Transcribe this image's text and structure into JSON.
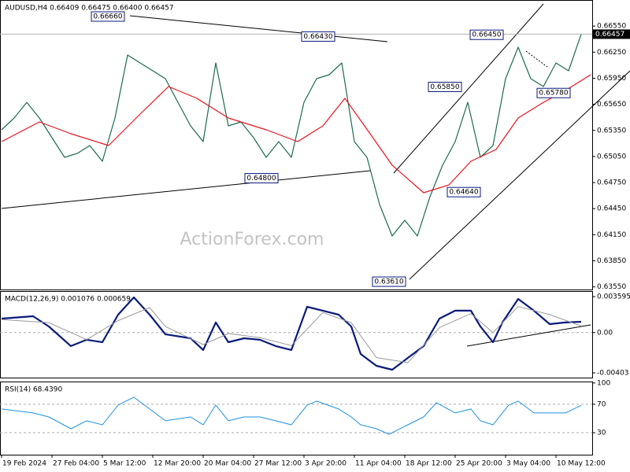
{
  "chart_data": [
    {
      "type": "line",
      "title": "AUDUSD,H4  0.66409 0.66475 0.66400 0.66457",
      "watermark": "ActionForex.com",
      "xlim": [
        -0.5,
        187.5
      ],
      "ylim": [
        0.6352,
        0.6685
      ],
      "yticks": [
        {
          "value": 0.6655,
          "label": "0.66550"
        },
        {
          "value": 0.6625,
          "label": "0.66250"
        },
        {
          "value": 0.6595,
          "label": "0.65950"
        },
        {
          "value": 0.6565,
          "label": "0.65650"
        },
        {
          "value": 0.6535,
          "label": "0.65350"
        },
        {
          "value": 0.6505,
          "label": "0.65050"
        },
        {
          "value": 0.6475,
          "label": "0.64750"
        },
        {
          "value": 0.6445,
          "label": "0.64450"
        },
        {
          "value": 0.6415,
          "label": "0.64150"
        },
        {
          "value": 0.6385,
          "label": "0.63850"
        },
        {
          "value": 0.6355,
          "label": "0.63550"
        }
      ],
      "last_price": {
        "value": 0.66457,
        "label": "0.66457"
      },
      "series": [
        {
          "color": "#1d6b4f",
          "x": [
            0,
            4,
            8,
            12,
            16,
            20,
            24,
            28,
            32,
            36,
            40,
            44,
            48,
            52,
            56,
            60,
            64,
            68,
            72,
            76,
            80,
            84,
            88,
            92,
            96,
            100,
            104,
            108,
            112,
            116,
            120,
            124,
            128,
            132,
            136,
            140,
            144,
            148,
            152,
            156,
            160,
            164,
            168,
            172,
            176,
            180,
            184
          ],
          "values": [
            0.65357,
            0.65493,
            0.65673,
            0.65493,
            0.65266,
            0.6504,
            0.65085,
            0.65176,
            0.64995,
            0.65493,
            0.66217,
            0.66126,
            0.66036,
            0.65945,
            0.65673,
            0.65402,
            0.65221,
            0.66126,
            0.65402,
            0.65447,
            0.65266,
            0.6504,
            0.65221,
            0.6504,
            0.65673,
            0.65945,
            0.6599,
            0.66126,
            0.65221,
            0.6504,
            0.64497,
            0.64135,
            0.64316,
            0.64135,
            0.64588,
            0.6495,
            0.65221,
            0.65673,
            0.6504,
            0.65176,
            0.65945,
            0.66307,
            0.65945,
            0.65855,
            0.66126,
            0.66036,
            0.66457
          ]
        },
        {
          "color": "#e8141e",
          "x": [
            0,
            12,
            22,
            34,
            44,
            53,
            62,
            72,
            84,
            94,
            102,
            109,
            117,
            124,
            134,
            142,
            149,
            157,
            164,
            172,
            179,
            187
          ],
          "values": [
            0.65221,
            0.65447,
            0.65312,
            0.65176,
            0.65538,
            0.65855,
            0.65719,
            0.65493,
            0.65357,
            0.65221,
            0.65402,
            0.65719,
            0.65312,
            0.6495,
            0.64633,
            0.64723,
            0.64995,
            0.65131,
            0.65493,
            0.65673,
            0.65809,
            0.6599
          ]
        }
      ],
      "annotations": [
        {
          "value": 0.6666,
          "label": "0.66660"
        },
        {
          "value": 0.6643,
          "label": "0.66430"
        },
        {
          "value": 0.648,
          "label": "0.64800"
        },
        {
          "value": 0.6361,
          "label": "0.63610"
        },
        {
          "value": 0.6585,
          "label": "0.65850"
        },
        {
          "value": 0.6645,
          "label": "0.66450"
        },
        {
          "value": 0.6464,
          "label": "0.64640"
        },
        {
          "value": 0.6578,
          "label": "0.65780"
        }
      ]
    },
    {
      "type": "line",
      "title": "MACD(12,26,9) 0.001076 0.000659",
      "xlim": [
        -0.5,
        187.5
      ],
      "ylim": [
        -0.0045,
        0.00415
      ],
      "yticks": [
        0.003595,
        {
          "value": 0,
          "label": "0.00"
        },
        -0.00403
      ],
      "reference_lines": [
        0
      ],
      "series": [
        {
          "color": "#0a1a7a",
          "width": 2.2,
          "x": [
            0,
            10,
            15,
            22,
            27,
            32,
            37,
            42,
            47,
            52,
            60,
            64,
            68,
            72,
            77,
            82,
            87,
            92,
            97,
            102,
            107,
            111,
            114,
            119,
            124,
            129,
            134,
            139,
            144,
            149,
            152,
            156,
            159,
            164,
            169,
            174,
            179,
            184
          ],
          "values": [
            0.0014,
            0.00163,
            0.00061,
            -0.00135,
            -0.00072,
            -0.00096,
            0.00179,
            0.00352,
            0.00179,
            -0.00017,
            -0.00057,
            -0.00174,
            0.00101,
            -0.00096,
            -0.00057,
            -0.00072,
            -0.00135,
            -0.00174,
            0.00258,
            0.00219,
            0.00179,
            0.00061,
            -0.00214,
            -0.00332,
            -0.00371,
            -0.00253,
            -0.00135,
            0.0014,
            0.00219,
            0.00219,
            0.00061,
            -0.00096,
            0.00101,
            0.00336,
            0.00219,
            0.00085,
            0.00101,
            0.00108
          ]
        },
        {
          "color": "#9a9a9a",
          "width": 1,
          "x": [
            0,
            15,
            27,
            37,
            47,
            52,
            64,
            72,
            82,
            92,
            102,
            111,
            119,
            129,
            139,
            149,
            156,
            164,
            174,
            184
          ],
          "values": [
            0.0013,
            0.001,
            -0.0007,
            0.0012,
            0.0025,
            0.0006,
            -0.0012,
            -0.0001,
            -0.0005,
            -0.0013,
            0.002,
            0.001,
            -0.0025,
            -0.003,
            0.0005,
            0.0019,
            0,
            0.0026,
            0.0018,
            0.00066
          ]
        }
      ]
    },
    {
      "type": "line",
      "title": "RSI(14) 68.4390",
      "xlim": [
        -0.5,
        187.5
      ],
      "ylim": [
        -1,
        102
      ],
      "yticks": [
        100,
        70,
        30
      ],
      "reference_lines": [
        70,
        30
      ],
      "xticks": [
        {
          "value": 0,
          "label": "19 Feb 2024"
        },
        {
          "value": 16,
          "label": "27 Feb 04:00"
        },
        {
          "value": 32,
          "label": "5 Mar 12:00"
        },
        {
          "value": 48,
          "label": "12 Mar 20:00"
        },
        {
          "value": 64,
          "label": "20 Mar 04:00"
        },
        {
          "value": 80,
          "label": "27 Mar 12:00"
        },
        {
          "value": 96,
          "label": "3 Apr 20:00"
        },
        {
          "value": 112,
          "label": "11 Apr 04:00"
        },
        {
          "value": 128,
          "label": "18 Apr 12:00"
        },
        {
          "value": 144,
          "label": "25 Apr 20:00"
        },
        {
          "value": 160,
          "label": "3 May 04:00"
        },
        {
          "value": 176,
          "label": "10 May 12:00"
        }
      ],
      "series": [
        {
          "color": "#1e90e0",
          "width": 1,
          "x": [
            0,
            10,
            15,
            22,
            27,
            32,
            37,
            42,
            47,
            52,
            60,
            64,
            68,
            72,
            77,
            82,
            87,
            92,
            97,
            100,
            107,
            111,
            114,
            119,
            123,
            129,
            134,
            138,
            144,
            149,
            152,
            156,
            161,
            164,
            169,
            174,
            179,
            184
          ],
          "values": [
            63.3,
            57.8,
            52.2,
            35.6,
            46.7,
            41.1,
            68.9,
            80,
            63.3,
            46.7,
            52.2,
            41.1,
            68.9,
            46.7,
            52.2,
            52.2,
            46.7,
            41.1,
            68.9,
            74.4,
            63.3,
            52.2,
            41.1,
            35.6,
            27.8,
            41.1,
            52.2,
            72.2,
            57.8,
            63.3,
            46.7,
            41.1,
            68.9,
            74.4,
            57.8,
            57.8,
            57.8,
            68.439
          ]
        }
      ]
    }
  ]
}
